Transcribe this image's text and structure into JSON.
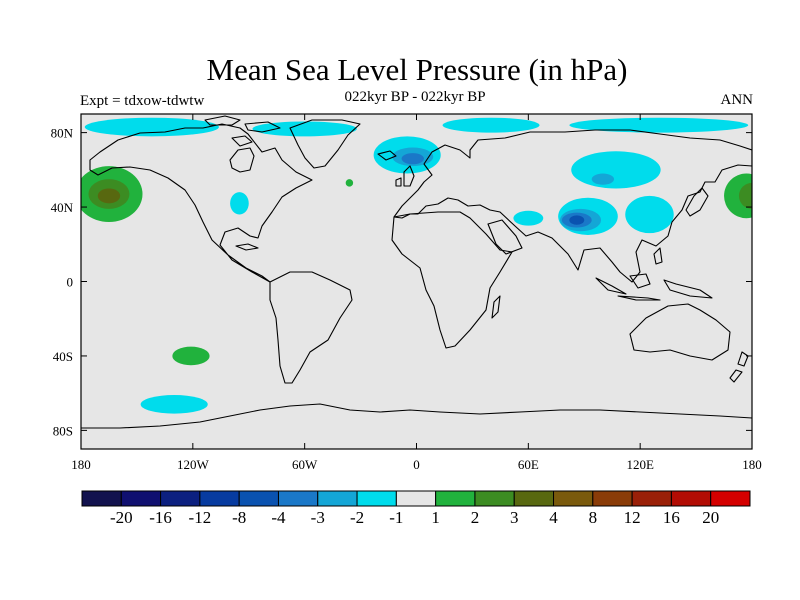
{
  "title": "Mean Sea Level Pressure (in hPa)",
  "subtitle": "022kyr BP - 022kyr BP",
  "experiment": "Expt = tdxow-tdwtw",
  "season": "ANN",
  "map": {
    "lon_range": [
      -180,
      180
    ],
    "lat_range": [
      -90,
      90
    ],
    "background_color": "#e6e6e6",
    "x_ticks": [
      {
        "value": -180,
        "label": "180"
      },
      {
        "value": -120,
        "label": "120W"
      },
      {
        "value": -60,
        "label": "60W"
      },
      {
        "value": 0,
        "label": "0"
      },
      {
        "value": 60,
        "label": "60E"
      },
      {
        "value": 120,
        "label": "120E"
      },
      {
        "value": 180,
        "label": "180"
      }
    ],
    "y_ticks": [
      {
        "value": 80,
        "label": "80N"
      },
      {
        "value": 40,
        "label": "40N"
      },
      {
        "value": 0,
        "label": "0"
      },
      {
        "value": -40,
        "label": "40S"
      },
      {
        "value": -80,
        "label": "80S"
      }
    ],
    "anomalies": [
      {
        "lon": -165,
        "lat": 47,
        "rlon": 18,
        "rlat": 15,
        "level": 1
      },
      {
        "lon": -165,
        "lat": 47,
        "rlon": 11,
        "rlat": 8,
        "level": 2
      },
      {
        "lon": -165,
        "lat": 46,
        "rlon": 6,
        "rlat": 4,
        "level": 3
      },
      {
        "lon": 177,
        "lat": 46,
        "rlon": 12,
        "rlat": 12,
        "level": 1
      },
      {
        "lon": 180,
        "lat": 46,
        "rlon": 7,
        "rlat": 7,
        "level": 2
      },
      {
        "lon": -121,
        "lat": -40,
        "rlon": 10,
        "rlat": 5,
        "level": 1
      },
      {
        "lon": -36,
        "lat": 53,
        "rlon": 2,
        "rlat": 2,
        "level": 1
      },
      {
        "lon": -130,
        "lat": -66,
        "rlon": 18,
        "rlat": 5,
        "level": -1
      },
      {
        "lon": -142,
        "lat": 83,
        "rlon": 36,
        "rlat": 5,
        "level": -1
      },
      {
        "lon": -60,
        "lat": 82,
        "rlon": 28,
        "rlat": 4,
        "level": -1
      },
      {
        "lon": 40,
        "lat": 84,
        "rlon": 26,
        "rlat": 4,
        "level": -1
      },
      {
        "lon": 130,
        "lat": 84,
        "rlon": 48,
        "rlat": 4,
        "level": -1
      },
      {
        "lon": -95,
        "lat": 42,
        "rlon": 5,
        "rlat": 6,
        "level": -1
      },
      {
        "lon": -5,
        "lat": 68,
        "rlon": 18,
        "rlat": 10,
        "level": -1
      },
      {
        "lon": -2,
        "lat": 67,
        "rlon": 11,
        "rlat": 5,
        "level": -2
      },
      {
        "lon": -2,
        "lat": 66,
        "rlon": 6,
        "rlat": 3,
        "level": -3
      },
      {
        "lon": 107,
        "lat": 60,
        "rlon": 24,
        "rlat": 10,
        "level": -1
      },
      {
        "lon": 100,
        "lat": 55,
        "rlon": 6,
        "rlat": 3,
        "level": -2
      },
      {
        "lon": 92,
        "lat": 35,
        "rlon": 16,
        "rlat": 10,
        "level": -1
      },
      {
        "lon": 88,
        "lat": 33,
        "rlon": 11,
        "rlat": 6,
        "level": -2
      },
      {
        "lon": 86,
        "lat": 33,
        "rlon": 8,
        "rlat": 4,
        "level": -3
      },
      {
        "lon": 86,
        "lat": 33,
        "rlon": 4,
        "rlat": 2.5,
        "level": -4
      },
      {
        "lon": 125,
        "lat": 36,
        "rlon": 13,
        "rlat": 10,
        "level": -1
      },
      {
        "lon": 60,
        "lat": 34,
        "rlon": 8,
        "rlat": 4,
        "level": -1
      }
    ]
  },
  "colorbar": {
    "colors": [
      "#12124e",
      "#101070",
      "#0c2080",
      "#073ba0",
      "#0a52b0",
      "#1a78c8",
      "#14a6d6",
      "#00dcec",
      "#e6e6e6",
      "#21b23d",
      "#3c8c22",
      "#586810",
      "#7a5a0c",
      "#8a3c08",
      "#9a2008",
      "#b20c04",
      "#d40000"
    ],
    "labels": [
      "-20",
      "-16",
      "-12",
      "-8",
      "-4",
      "-3",
      "-2",
      "-1",
      "1",
      "2",
      "3",
      "4",
      "8",
      "12",
      "16",
      "20"
    ]
  }
}
